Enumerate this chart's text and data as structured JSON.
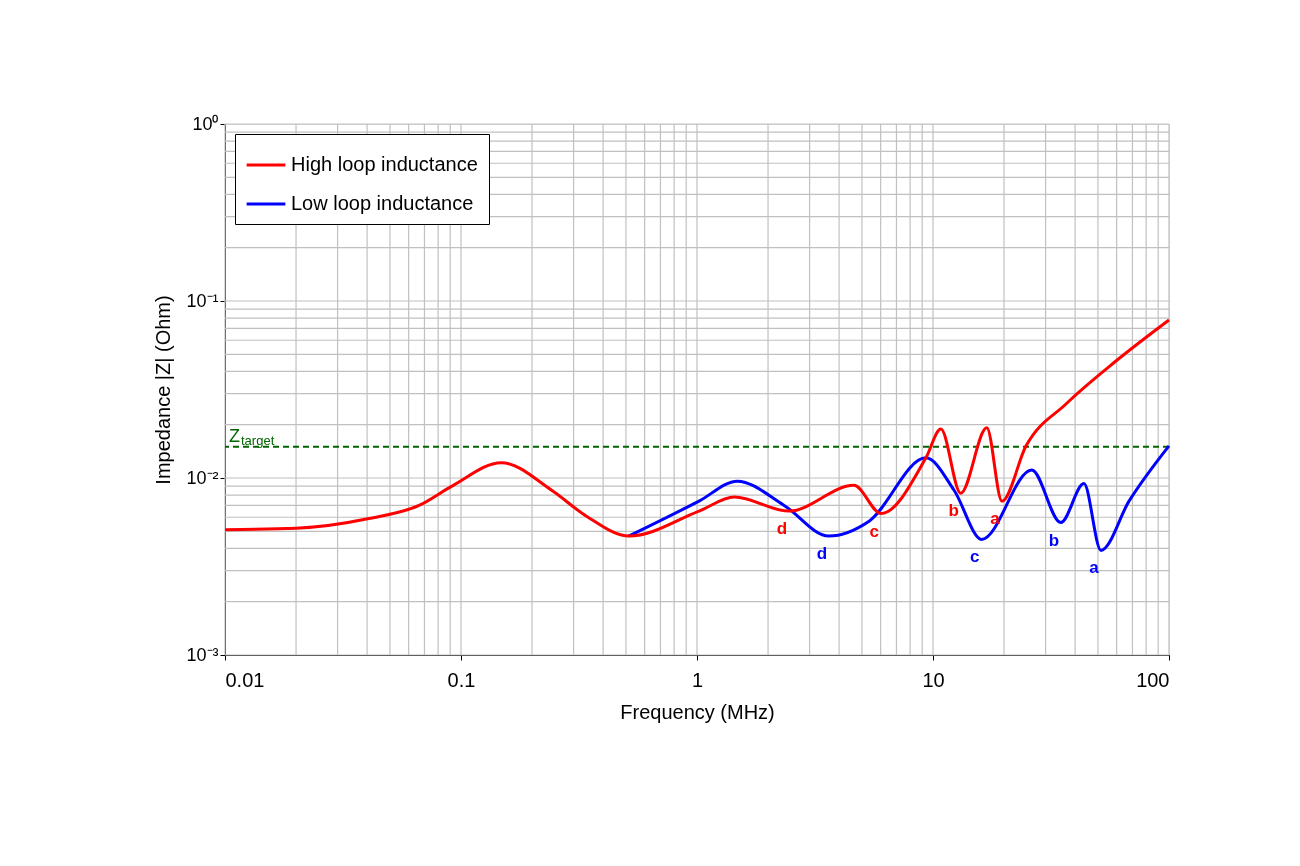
{
  "chart_data": {
    "type": "line",
    "xlabel": "Frequency (MHz)",
    "ylabel": "Impedance |Z|  (Ohm)",
    "log": "xy",
    "grid": true,
    "legend": "top left",
    "line_style": "solid",
    "marker": "none",
    "xlim": [
      0.01,
      100
    ],
    "xticks": [
      0.01,
      0.1,
      1,
      10,
      100
    ],
    "ylim": [
      0.001,
      1
    ],
    "yticks": [
      {
        "value": 1,
        "label": "10⁰"
      },
      {
        "value": 0.1,
        "label": "10⁻¹"
      },
      {
        "value": 0.01,
        "label": "10⁻²"
      },
      {
        "value": 0.001,
        "label": "10⁻³"
      }
    ],
    "series": [
      {
        "name": "High loop inductance",
        "color": "#ff0000",
        "x": [
          0.01,
          0.02,
          0.0407,
          0.0664,
          0.0916,
          0.148,
          0.243,
          0.339,
          0.515,
          1.02,
          1.44,
          2.45,
          4.62,
          6.03,
          9.33,
          10.8,
          13.1,
          16.9,
          19.6,
          24.8,
          36.6,
          59.6,
          100
        ],
        "values": [
          0.0051,
          0.0052,
          0.0059,
          0.007,
          0.009,
          0.0122,
          0.0085,
          0.0061,
          0.0047,
          0.0065,
          0.0078,
          0.0065,
          0.0091,
          0.0063,
          0.013,
          0.0189,
          0.0082,
          0.0192,
          0.0074,
          0.0152,
          0.0262,
          0.0458,
          0.0781
        ]
      },
      {
        "name": "Low  loop inductance",
        "color": "#0000ff",
        "x": [
          0.515,
          1.02,
          1.48,
          2.34,
          3.62,
          5.36,
          9.33,
          12.3,
          16.1,
          26.2,
          34.8,
          43.6,
          51.5,
          67.7,
          100
        ],
        "values": [
          0.0047,
          0.0074,
          0.0096,
          0.007,
          0.0047,
          0.0057,
          0.013,
          0.0085,
          0.0045,
          0.0111,
          0.0056,
          0.0093,
          0.0039,
          0.0074,
          0.0152
        ]
      }
    ],
    "ref_lines": [
      {
        "axis": "y",
        "value": 0.015,
        "label": "Z$_{target}$",
        "color": "#006400",
        "line_style": "dashed"
      }
    ],
    "annotations": [
      {
        "text": "d",
        "x": 2.45,
        "y": 0.0065
      },
      {
        "text": "c",
        "x": 6.03,
        "y": 0.0063
      },
      {
        "text": "b",
        "x": 13.1,
        "y": 0.0082
      },
      {
        "text": "a",
        "x": 19.6,
        "y": 0.0074
      },
      {
        "text": "d",
        "x": 3.62,
        "y": 0.0047
      },
      {
        "text": "c",
        "x": 16.1,
        "y": 0.0045
      },
      {
        "text": "b",
        "x": 34.8,
        "y": 0.0056
      },
      {
        "text": "a",
        "x": 51.5,
        "y": 0.0039
      }
    ]
  }
}
